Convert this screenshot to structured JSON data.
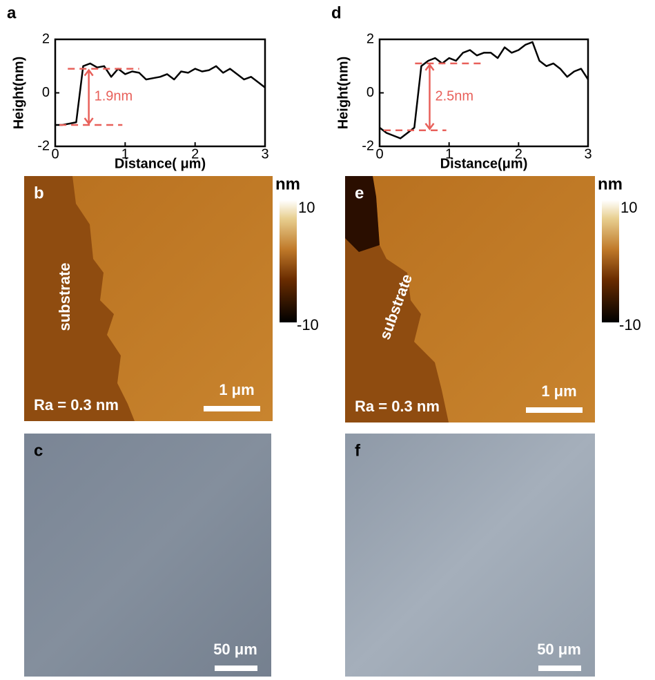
{
  "chart_data": [
    {
      "type": "line",
      "panel": "a",
      "xlabel": "Distance( μm)",
      "ylabel": "Height(nm)",
      "x": [
        0,
        0.1,
        0.2,
        0.3,
        0.4,
        0.5,
        0.6,
        0.7,
        0.8,
        0.9,
        1.0,
        1.1,
        1.2,
        1.3,
        1.4,
        1.5,
        1.6,
        1.7,
        1.8,
        1.9,
        2.0,
        2.1,
        2.2,
        2.3,
        2.4,
        2.5,
        2.6,
        2.7,
        2.8,
        2.9,
        3.0
      ],
      "series": [
        {
          "color": "#000000",
          "values": [
            -1.2,
            -1.2,
            -1.15,
            -1.1,
            1.0,
            1.1,
            0.95,
            1.0,
            0.6,
            0.9,
            0.7,
            0.8,
            0.75,
            0.5,
            0.55,
            0.6,
            0.7,
            0.5,
            0.8,
            0.75,
            0.9,
            0.8,
            0.85,
            1.0,
            0.75,
            0.9,
            0.7,
            0.5,
            0.6,
            0.4,
            0.2
          ]
        }
      ],
      "xlim": [
        0,
        3
      ],
      "ylim": [
        -2,
        2
      ],
      "xticks": [
        0,
        1,
        2,
        3
      ],
      "yticks": [
        -2,
        0,
        2
      ],
      "annotation": {
        "text": "1.9nm",
        "levels": [
          -1.2,
          0.9
        ],
        "color": "#e8605a"
      }
    },
    {
      "type": "line",
      "panel": "d",
      "xlabel": "Distance(μm)",
      "ylabel": "Height(nm)",
      "x": [
        0,
        0.1,
        0.2,
        0.3,
        0.4,
        0.5,
        0.6,
        0.7,
        0.8,
        0.9,
        1.0,
        1.1,
        1.2,
        1.3,
        1.4,
        1.5,
        1.6,
        1.7,
        1.8,
        1.9,
        2.0,
        2.1,
        2.2,
        2.3,
        2.4,
        2.5,
        2.6,
        2.7,
        2.8,
        2.9,
        3.0
      ],
      "series": [
        {
          "color": "#000000",
          "values": [
            -1.3,
            -1.5,
            -1.6,
            -1.7,
            -1.5,
            -1.3,
            1.0,
            1.2,
            1.3,
            1.1,
            1.3,
            1.2,
            1.5,
            1.6,
            1.4,
            1.5,
            1.5,
            1.3,
            1.7,
            1.5,
            1.6,
            1.8,
            1.9,
            1.2,
            1.0,
            1.1,
            0.9,
            0.6,
            0.8,
            0.9,
            0.5
          ]
        }
      ],
      "xlim": [
        0,
        3
      ],
      "ylim": [
        -2,
        2
      ],
      "xticks": [
        0,
        1,
        2,
        3
      ],
      "yticks": [
        -2,
        0,
        2
      ],
      "annotation": {
        "text": "2.5nm",
        "levels": [
          -1.4,
          1.1
        ],
        "color": "#e8605a"
      }
    }
  ],
  "panels": [
    {
      "letter": "b",
      "kind": "afm",
      "region_label": "substrate",
      "roughness": "Ra = 0.3 nm",
      "scale_bar": "1 μm",
      "colorbar": {
        "unit": "nm",
        "max": 10,
        "min": -10
      }
    },
    {
      "letter": "e",
      "kind": "afm",
      "region_label": "substrate",
      "roughness": "Ra = 0.3 nm",
      "scale_bar": "1 μm",
      "colorbar": {
        "unit": "nm",
        "max": 10,
        "min": -10
      }
    },
    {
      "letter": "c",
      "kind": "optical",
      "scale_bar": "50 μm"
    },
    {
      "letter": "f",
      "kind": "optical",
      "scale_bar": "50 μm"
    }
  ]
}
